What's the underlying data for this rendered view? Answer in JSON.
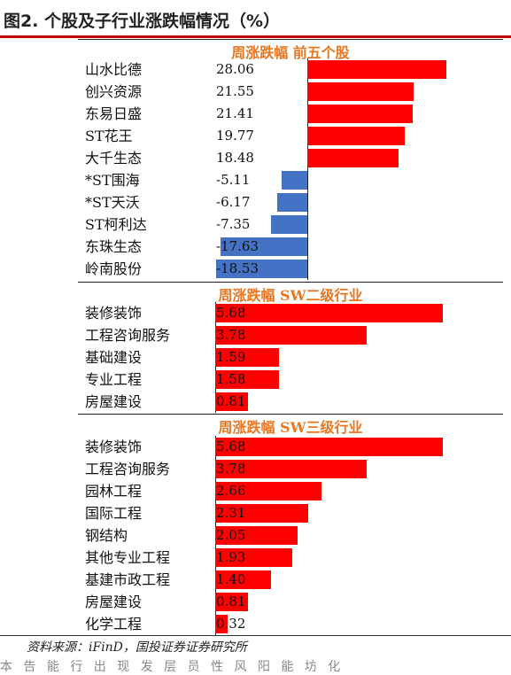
{
  "title": "图2. 个股及子行业涨跌幅情况（%）",
  "source": "资料来源：iFinD，国投证券证券研究所",
  "footer_cut": "本  告 能  行 出  现  发 层 员 性 风  阳 能 坊 化",
  "chart_data": [
    {
      "type": "bar",
      "orientation": "horizontal",
      "title": "周涨跌幅 前五个股",
      "categories": [
        "山水比德",
        "创兴资源",
        "东易日盛",
        "ST花王",
        "大千生态",
        "*ST围海",
        "*ST天沃",
        "ST柯利达",
        "东珠生态",
        "岭南股份"
      ],
      "values": [
        28.06,
        21.55,
        21.41,
        19.77,
        18.48,
        -5.11,
        -6.17,
        -7.35,
        -17.63,
        -18.53
      ],
      "value_labels": [
        "28.06",
        "21.55",
        "21.41",
        "19.77",
        "18.48",
        "-5.11",
        "-6.17",
        "-7.35",
        "-17.63",
        "-18.53"
      ],
      "colors": {
        "positive": "#ff0000",
        "negative": "#4472c4"
      }
    },
    {
      "type": "bar",
      "orientation": "horizontal",
      "title": "周涨跌幅 SW二级行业",
      "categories": [
        "装修装饰",
        "工程咨询服务",
        "基础建设",
        "专业工程",
        "房屋建设"
      ],
      "values": [
        5.68,
        3.78,
        1.59,
        1.58,
        0.81
      ],
      "value_labels": [
        "5.68",
        "3.78",
        "1.59",
        "1.58",
        "0.81"
      ],
      "colors": {
        "positive": "#ff0000"
      }
    },
    {
      "type": "bar",
      "orientation": "horizontal",
      "title": "周涨跌幅 SW三级行业",
      "categories": [
        "装修装饰",
        "工程咨询服务",
        "园林工程",
        "国际工程",
        "钢结构",
        "其他专业工程",
        "基建市政工程",
        "房屋建设",
        "化学工程"
      ],
      "values": [
        5.68,
        3.78,
        2.66,
        2.31,
        2.05,
        1.93,
        1.4,
        0.81,
        0.32
      ],
      "value_labels": [
        "5.68",
        "3.78",
        "2.66",
        "2.31",
        "2.05",
        "1.93",
        "1.40",
        "0.81",
        "0.32"
      ],
      "colors": {
        "positive": "#ff0000"
      }
    }
  ]
}
